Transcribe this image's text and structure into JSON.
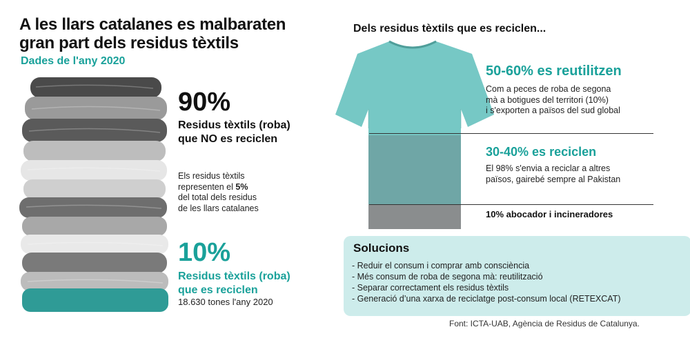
{
  "left": {
    "title_line1": "A les llars catalanes es malbaraten",
    "title_line2": "gran part dels residus tèxtils",
    "subtitle": "Dades de l'any 2020",
    "stat1_value": "90%",
    "stat1_line1": "Residus tèxtils (roba)",
    "stat1_line2": "que NO es reciclen",
    "note_line1": "Els residus tèxtils",
    "note_line2_pre": "representen el ",
    "note_line2_bold": "5%",
    "note_line3": "del total dels residus",
    "note_line4": "de les llars catalanes",
    "stat2_value": "10%",
    "stat2_line1": "Residus tèxtils (roba)",
    "stat2_line2": "que es reciclen",
    "stat2_sub": "18.630 tones l'any 2020"
  },
  "right": {
    "title": "Dels residus tèxtils que es reciclen...",
    "reuse_heading": "50-60% es reutilitzen",
    "reuse_line1": "Com a peces de roba de segona",
    "reuse_line2": "mà a botigues del territori (10%)",
    "reuse_line3": "i s'exporten a països del sud global",
    "recycle_heading": "30-40% es reciclen",
    "recycle_line1": "El 98% s'envia a reciclar a altres",
    "recycle_line2": "països, gairebé sempre al Pakistan",
    "landfill_heading": "10% abocador i incineradores"
  },
  "solutions": {
    "heading": "Solucions",
    "items": [
      "- Reduir el consum i comprar amb consciència",
      "- Més consum de roba de segona mà: reutilització",
      "- Separar correctament els residus tèxtils",
      "- Generació d’una xarxa de reciclatge post-consum local (RETEXCAT)"
    ]
  },
  "source": "Font: ICTA-UAB, Agència de Residus de Catalunya.",
  "colors": {
    "accent": "#1aa19a",
    "shirt_top": "#76c8c5",
    "shirt_mid": "#6fa6a6",
    "shirt_bottom": "#8a8d8e",
    "solutions_bg": "#cdeceb"
  }
}
